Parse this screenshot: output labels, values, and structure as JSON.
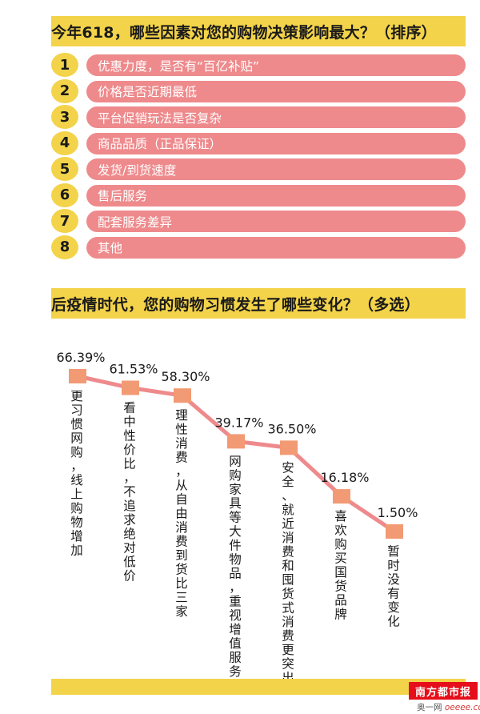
{
  "section1": {
    "title": "今年618，哪些因素对您的购物决策影响最大？（排序）",
    "items": [
      {
        "rank": "1",
        "label": "优惠力度，是否有“百亿补贴”"
      },
      {
        "rank": "2",
        "label": "价格是否近期最低"
      },
      {
        "rank": "3",
        "label": "平台促销玩法是否复杂"
      },
      {
        "rank": "4",
        "label": "商品品质（正品保证）"
      },
      {
        "rank": "5",
        "label": "发货/到货速度"
      },
      {
        "rank": "6",
        "label": "售后服务"
      },
      {
        "rank": "7",
        "label": "配套服务差异"
      },
      {
        "rank": "8",
        "label": "其他"
      }
    ]
  },
  "section2": {
    "title": "后疫情时代，您的购物习惯发生了哪些变化？（多选）"
  },
  "chart_data": {
    "type": "line",
    "title": "后疫情时代，您的购物习惯发生了哪些变化？（多选）",
    "categories": [
      "更习惯网购，线上购物增加",
      "看中性价比，不追求绝对低价",
      "理性消费，从自由消费到货比三家",
      "网购家具等大件物品，重视增值服务",
      "安全、就近消费和囤货式消费更突出",
      "喜欢购买国货品牌",
      "暂时没有变化"
    ],
    "values": [
      66.39,
      61.53,
      58.3,
      39.17,
      36.5,
      16.18,
      1.5
    ],
    "value_labels": [
      "66.39%",
      "61.53%",
      "58.30%",
      "39.17%",
      "36.50%",
      "16.18%",
      "1.50%"
    ],
    "unit": "%",
    "xlabel": "",
    "ylabel": "",
    "ylim": [
      0,
      100
    ],
    "grid": false,
    "legend": "none"
  },
  "colors": {
    "title_bar": "#f3d34a",
    "rank_badge": "#f3d34a",
    "rank_bar": "#ee8a8c",
    "line": "#ee8a8c",
    "marker": "#f29a73",
    "logo_bg": "#e50e1a"
  },
  "footer": {
    "logo": "南方都市报",
    "site_prefix": "奥一网",
    "site_suffix": "oeeee.com"
  }
}
